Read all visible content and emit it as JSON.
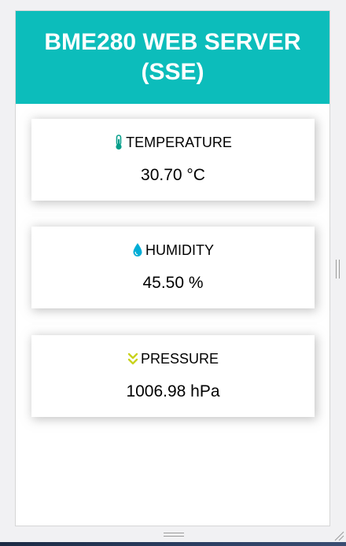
{
  "header": {
    "title": "BME280 WEB SERVER (SSE)",
    "background_color": "#0cbdbb"
  },
  "cards": [
    {
      "icon": "thermometer-icon",
      "icon_color": "#059e8a",
      "label": "TEMPERATURE",
      "value": "30.70 °C"
    },
    {
      "icon": "droplet-icon",
      "icon_color": "#00add6",
      "label": "HUMIDITY",
      "value": "45.50 %"
    },
    {
      "icon": "double-chevron-down-icon",
      "icon_color": "#c9d21e",
      "label": "PRESSURE",
      "value": "1006.98 hPa"
    }
  ]
}
